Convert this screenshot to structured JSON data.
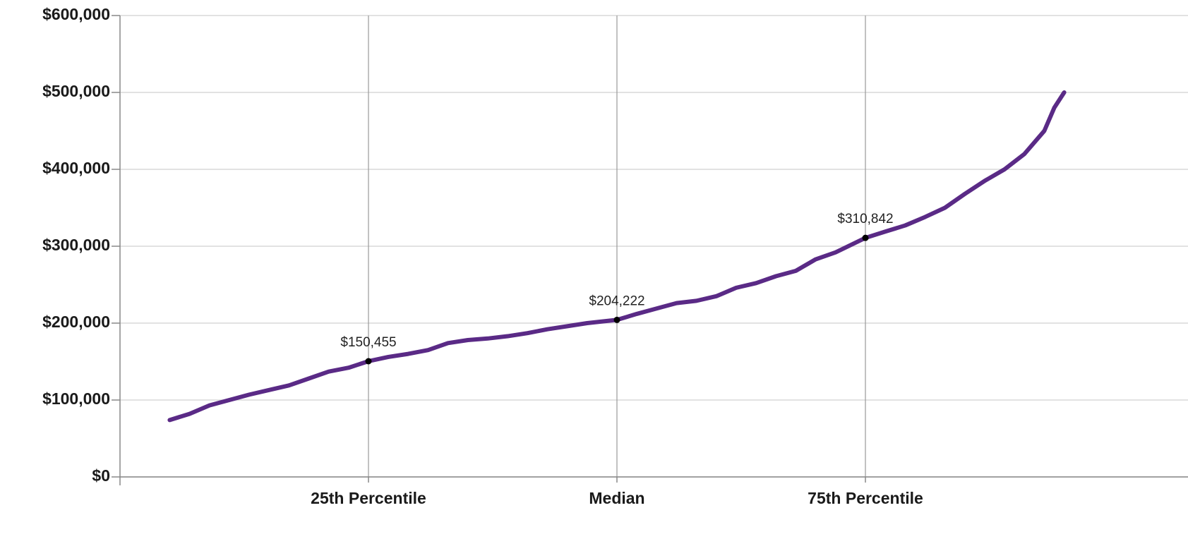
{
  "chart_data": {
    "type": "line",
    "series": [
      {
        "name": null,
        "color": "#5a2a86",
        "x": [
          5,
          7,
          9,
          11,
          13,
          15,
          17,
          19,
          21,
          23,
          25,
          27,
          29,
          31,
          33,
          35,
          37,
          39,
          41,
          43,
          45,
          47,
          50,
          52,
          54,
          56,
          58,
          60,
          62,
          64,
          66,
          68,
          70,
          72,
          75,
          77,
          79,
          81,
          83,
          85,
          87,
          89,
          91,
          93,
          94,
          95
        ],
        "values": [
          74000,
          82000,
          93000,
          100000,
          107000,
          113000,
          119000,
          128000,
          137000,
          142000,
          150455,
          156000,
          160000,
          165000,
          174000,
          178000,
          180000,
          183000,
          187000,
          192000,
          196000,
          200000,
          204222,
          212000,
          219000,
          226000,
          229000,
          235000,
          246000,
          252000,
          261000,
          268000,
          283000,
          292000,
          310842,
          319000,
          327000,
          338000,
          350000,
          368000,
          385000,
          400000,
          420000,
          450000,
          480000,
          500000
        ]
      }
    ],
    "annotations": [
      {
        "x": 25,
        "value": 150455,
        "label": "$150,455"
      },
      {
        "x": 50,
        "value": 204222,
        "label": "$204,222"
      },
      {
        "x": 75,
        "value": 310842,
        "label": "$310,842"
      }
    ],
    "xlim": [
      0,
      100
    ],
    "xticks": [
      {
        "value": 25,
        "label": "25th Percentile"
      },
      {
        "value": 50,
        "label": "Median"
      },
      {
        "value": 75,
        "label": "75th Percentile"
      }
    ],
    "ylim": [
      0,
      600000
    ],
    "yticks": [
      {
        "value": 0,
        "label": "$0"
      },
      {
        "value": 100000,
        "label": "$100,000"
      },
      {
        "value": 200000,
        "label": "$200,000"
      },
      {
        "value": 300000,
        "label": "$300,000"
      },
      {
        "value": 400000,
        "label": "$400,000"
      },
      {
        "value": 500000,
        "label": "$500,000"
      },
      {
        "value": 600000,
        "label": "$600,000"
      }
    ],
    "grid": true
  }
}
